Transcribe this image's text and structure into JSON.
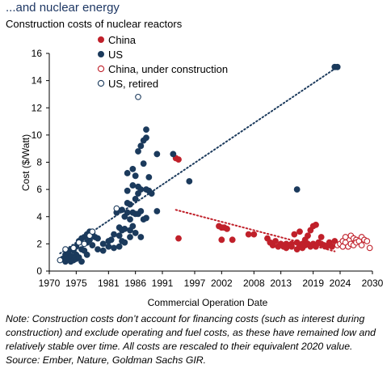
{
  "header": {
    "title": "...and nuclear energy",
    "subtitle": "Construction costs of nuclear reactors"
  },
  "colors": {
    "china": "#c0202a",
    "us": "#1b3a5c",
    "title": "#1f3864"
  },
  "chart_data": {
    "type": "scatter",
    "xlabel": "Commercial Operation Date",
    "ylabel": "Cost ($/Watt)",
    "xlim": [
      1970,
      2030
    ],
    "ylim": [
      0,
      16
    ],
    "xticks": [
      1970,
      1975,
      1981,
      1986,
      1991,
      1997,
      2002,
      2008,
      2013,
      2019,
      2024,
      2030
    ],
    "yticks": [
      0,
      2,
      4,
      6,
      8,
      10,
      12,
      14,
      16
    ],
    "grid": false,
    "legend_position": "top-left",
    "series": [
      {
        "name": "China",
        "marker": "filled",
        "color": "#c0202a",
        "points": [
          [
            1993.5,
            8.3
          ],
          [
            1994,
            8.2
          ],
          [
            1994,
            2.4
          ],
          [
            2001.5,
            3.3
          ],
          [
            2002,
            3.2
          ],
          [
            2002.5,
            3.2
          ],
          [
            2003,
            3.1
          ],
          [
            2002,
            2.3
          ],
          [
            2004,
            2.3
          ],
          [
            2007,
            2.7
          ],
          [
            2008,
            2.7
          ],
          [
            2010.5,
            2.4
          ],
          [
            2011,
            2.1
          ],
          [
            2011.5,
            1.9
          ],
          [
            2012,
            2.2
          ],
          [
            2012.5,
            1.8
          ],
          [
            2013,
            2.0
          ],
          [
            2013.5,
            1.8
          ],
          [
            2014,
            2.0
          ],
          [
            2014,
            1.7
          ],
          [
            2014.5,
            1.9
          ],
          [
            2015,
            1.8
          ],
          [
            2015,
            2.0
          ],
          [
            2015.5,
            2.7
          ],
          [
            2016,
            1.6
          ],
          [
            2016,
            2.1
          ],
          [
            2016.5,
            2.9
          ],
          [
            2016.5,
            1.8
          ],
          [
            2017,
            2.0
          ],
          [
            2017,
            1.7
          ],
          [
            2017.5,
            2.3
          ],
          [
            2017.5,
            1.9
          ],
          [
            2018,
            2.6
          ],
          [
            2018,
            2.0
          ],
          [
            2018.5,
            3.0
          ],
          [
            2018.5,
            1.8
          ],
          [
            2019,
            2.0
          ],
          [
            2019,
            3.3
          ],
          [
            2019.5,
            3.4
          ],
          [
            2019.5,
            1.8
          ],
          [
            2020,
            2.1
          ],
          [
            2020.5,
            2.0
          ],
          [
            2020.5,
            2.5
          ],
          [
            2021,
            1.9
          ],
          [
            2021.5,
            1.8
          ],
          [
            2022,
            2.1
          ],
          [
            2022,
            2.0
          ],
          [
            2022.5,
            1.8
          ],
          [
            2023,
            2.2
          ]
        ]
      },
      {
        "name": "US",
        "marker": "filled",
        "color": "#1b3a5c",
        "points": [
          [
            1972.5,
            0.9
          ],
          [
            1973,
            1.2
          ],
          [
            1973,
            0.7
          ],
          [
            1973.5,
            1.4
          ],
          [
            1973.5,
            0.9
          ],
          [
            1974,
            1.6
          ],
          [
            1974,
            1.1
          ],
          [
            1974,
            0.7
          ],
          [
            1974.5,
            1.5
          ],
          [
            1974.5,
            0.8
          ],
          [
            1975,
            1.8
          ],
          [
            1975,
            1.2
          ],
          [
            1975,
            0.9
          ],
          [
            1975.5,
            2.2
          ],
          [
            1975.5,
            1.0
          ],
          [
            1976,
            2.4
          ],
          [
            1976,
            1.6
          ],
          [
            1976,
            0.7
          ],
          [
            1976.5,
            2.5
          ],
          [
            1976.5,
            1.5
          ],
          [
            1977,
            2.7
          ],
          [
            1977,
            2.1
          ],
          [
            1977,
            1.2
          ],
          [
            1977.5,
            2.9
          ],
          [
            1977.5,
            2.3
          ],
          [
            1978,
            2.8
          ],
          [
            1978,
            1.9
          ],
          [
            1978.5,
            2.5
          ],
          [
            1979,
            2.4
          ],
          [
            1979,
            1.6
          ],
          [
            1980,
            2.0
          ],
          [
            1980,
            1.5
          ],
          [
            1981,
            2.2
          ],
          [
            1981,
            1.8
          ],
          [
            1981.5,
            2.3
          ],
          [
            1982,
            2.7
          ],
          [
            1982,
            1.7
          ],
          [
            1982.5,
            4.3
          ],
          [
            1983,
            3.2
          ],
          [
            1983,
            2.6
          ],
          [
            1983,
            1.8
          ],
          [
            1983.5,
            4.5
          ],
          [
            1983.5,
            3.0
          ],
          [
            1983.5,
            2.2
          ],
          [
            1984,
            4.0
          ],
          [
            1984,
            3.1
          ],
          [
            1984,
            2.1
          ],
          [
            1984.5,
            5.0
          ],
          [
            1984.5,
            5.9
          ],
          [
            1984.5,
            7.2
          ],
          [
            1984.5,
            4.3
          ],
          [
            1985,
            4.9
          ],
          [
            1985,
            3.8
          ],
          [
            1985,
            3.0
          ],
          [
            1985,
            2.5
          ],
          [
            1985.5,
            6.3
          ],
          [
            1985.5,
            4.3
          ],
          [
            1985.5,
            7.5
          ],
          [
            1985.5,
            3.3
          ],
          [
            1986,
            5.3
          ],
          [
            1986,
            4.2
          ],
          [
            1986,
            2.8
          ],
          [
            1986,
            7.0
          ],
          [
            1986.5,
            8.8
          ],
          [
            1986.5,
            6.2
          ],
          [
            1986.5,
            5.7
          ],
          [
            1986.5,
            4.2
          ],
          [
            1987,
            9.2
          ],
          [
            1987,
            6.0
          ],
          [
            1987,
            4.4
          ],
          [
            1987,
            2.5
          ],
          [
            1987.5,
            9.6
          ],
          [
            1987.5,
            7.9
          ],
          [
            1987.5,
            3.8
          ],
          [
            1988,
            10.4
          ],
          [
            1988,
            6.0
          ],
          [
            1988,
            3.9
          ],
          [
            1988,
            9.8
          ],
          [
            1988.5,
            6.9
          ],
          [
            1988.5,
            5.9
          ],
          [
            1989,
            5.7
          ],
          [
            1990,
            8.6
          ],
          [
            1990,
            4.4
          ],
          [
            1993,
            8.6
          ],
          [
            1996,
            6.6
          ],
          [
            2016,
            6.0
          ],
          [
            2023,
            15.0
          ],
          [
            2023.5,
            15.0
          ]
        ]
      },
      {
        "name": "China, under construction",
        "marker": "open",
        "color": "#c0202a",
        "points": [
          [
            2023.5,
            1.9
          ],
          [
            2024,
            2.0
          ],
          [
            2024.5,
            2.2
          ],
          [
            2024.5,
            1.8
          ],
          [
            2025,
            2.5
          ],
          [
            2025,
            2.1
          ],
          [
            2025.5,
            1.8
          ],
          [
            2026,
            2.6
          ],
          [
            2026,
            2.0
          ],
          [
            2026.5,
            2.4
          ],
          [
            2026.5,
            1.9
          ],
          [
            2027,
            2.3
          ],
          [
            2027,
            2.1
          ],
          [
            2027.5,
            2.2
          ],
          [
            2028,
            1.9
          ],
          [
            2028,
            2.5
          ],
          [
            2028.5,
            2.3
          ],
          [
            2029,
            2.2
          ],
          [
            2029.5,
            1.7
          ]
        ]
      },
      {
        "name": "US, retired",
        "marker": "open",
        "color": "#1b3a5c",
        "points": [
          [
            1972,
            0.8
          ],
          [
            1973,
            1.6
          ],
          [
            1974.5,
            1.7
          ],
          [
            1975.5,
            2.1
          ],
          [
            1976.5,
            2.0
          ],
          [
            1977.5,
            2.6
          ],
          [
            1978,
            2.9
          ],
          [
            1982.5,
            4.6
          ],
          [
            1986.5,
            12.8
          ]
        ]
      }
    ],
    "trendlines": [
      {
        "series": "US",
        "from": [
          1972,
          1.3
        ],
        "to": [
          2023.5,
          15.0
        ],
        "color": "#1b3a5c"
      },
      {
        "series": "China",
        "from": [
          1993.5,
          4.5
        ],
        "to": [
          2023,
          1.45
        ],
        "color": "#c0202a"
      }
    ]
  },
  "footnote": {
    "note": "Note: Construction costs don’t account for financing costs (such as interest during construction) and exclude operating and fuel costs, as these have remained low and relatively stable over time. All costs are rescaled to their equivalent 2020 value.",
    "source": "Source: Ember, Nature, Goldman Sachs GIR."
  }
}
